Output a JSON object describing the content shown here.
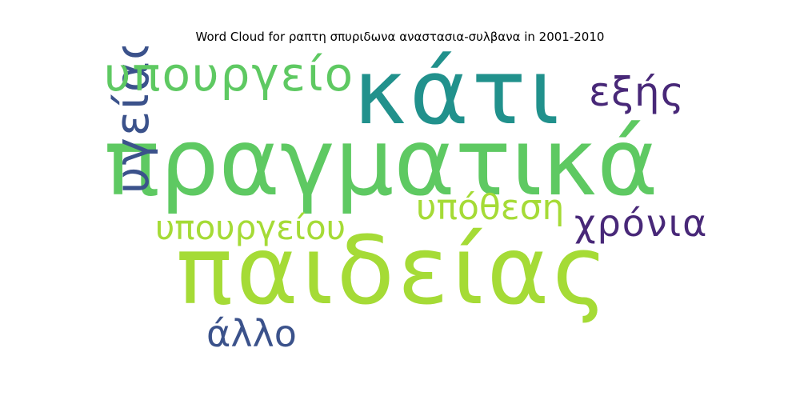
{
  "title": "Word Cloud for ραπτη σπυριδωνα αναστασια-συλβανα in 2001-2010",
  "chart_data": {
    "type": "wordcloud",
    "title": "Word Cloud for ραπτη σπυριδωνα αναστασια-συλβανα in 2001-2010",
    "background": "#ffffff",
    "words": [
      {
        "text": "πραγματικά",
        "weight": 1.0,
        "color": "#5ec962",
        "vertical": false
      },
      {
        "text": "παιδείας",
        "weight": 0.96,
        "color": "#a5db36",
        "vertical": false
      },
      {
        "text": "κάτι",
        "weight": 0.66,
        "color": "#21918c",
        "vertical": false
      },
      {
        "text": "υγείας",
        "weight": 0.41,
        "color": "#3b528b",
        "vertical": true
      },
      {
        "text": "υπουργείο",
        "weight": 0.38,
        "color": "#5ec962",
        "vertical": false
      },
      {
        "text": "υπουργείου",
        "weight": 0.3,
        "color": "#a5db36",
        "vertical": false
      },
      {
        "text": "εξής",
        "weight": 0.3,
        "color": "#482878",
        "vertical": false
      },
      {
        "text": "υπόθεση",
        "weight": 0.3,
        "color": "#a5db36",
        "vertical": false
      },
      {
        "text": "χρόνια",
        "weight": 0.3,
        "color": "#482878",
        "vertical": false
      },
      {
        "text": "άλλο",
        "weight": 0.3,
        "color": "#3b528b",
        "vertical": false
      }
    ]
  }
}
